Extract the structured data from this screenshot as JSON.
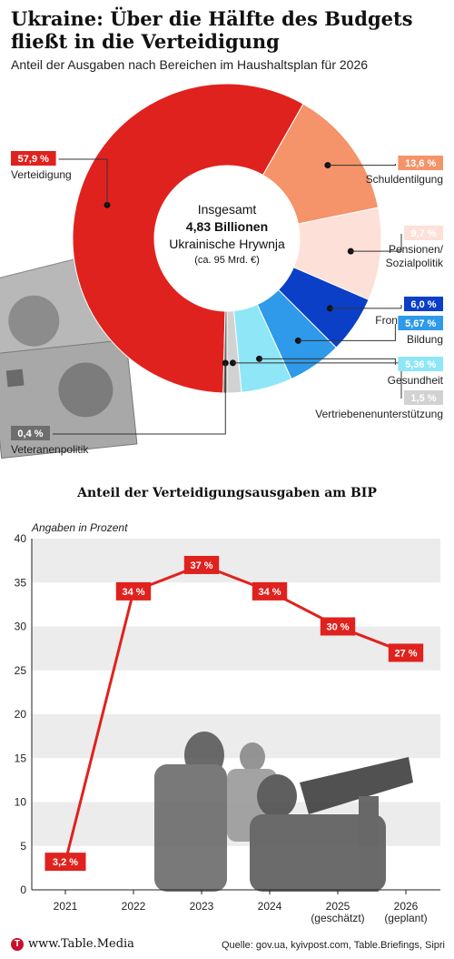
{
  "header": {
    "title": "Ukraine: Über die Hälfte des Budgets fließt in die Verteidigung",
    "subtitle": "Anteil der Ausgaben nach Bereichen im Haushaltsplan für 2026"
  },
  "chart_data": [
    {
      "type": "pie",
      "center": {
        "line1": "Insgesamt",
        "line2": "4,83 Billionen",
        "line3": "Ukrainische Hrywnja",
        "line4": "(ca. 95 Mrd. €)"
      },
      "slices": [
        {
          "name": "Verteidigung",
          "value": 57.9,
          "label": "57,9 %",
          "color": "#e0221e",
          "side": "left"
        },
        {
          "name": "Schuldentilgung",
          "value": 13.6,
          "label": "13,6 %",
          "color": "#f5936a",
          "side": "right"
        },
        {
          "name": "Pensionen/ Sozialpolitik",
          "value": 9.7,
          "label": "9,7 %",
          "color": "#fde0d8",
          "side": "right"
        },
        {
          "name": "Frontregionen",
          "value": 6.0,
          "label": "6,0 %",
          "color": "#0b3fc7",
          "side": "right"
        },
        {
          "name": "Bildung",
          "value": 5.67,
          "label": "5,67 %",
          "color": "#2f9aea",
          "side": "right"
        },
        {
          "name": "Gesundheit",
          "value": 5.36,
          "label": "5,36 %",
          "color": "#8ee6f7",
          "side": "right"
        },
        {
          "name": "Vertriebenenunterstützung",
          "value": 1.5,
          "label": "1,5 %",
          "color": "#d2d2d2",
          "side": "right"
        },
        {
          "name": "Veteranenpolitik",
          "value": 0.4,
          "label": "0,4 %",
          "color": "#6e6e6e",
          "side": "left"
        }
      ]
    },
    {
      "type": "line",
      "title": "Anteil der Verteidigungsausgaben am BIP",
      "ylabel": "Angaben in Prozent",
      "ylim": [
        0,
        40
      ],
      "yticks": [
        0,
        5,
        10,
        15,
        20,
        25,
        30,
        35,
        40
      ],
      "grid": "alternating horizontal bands",
      "color": "#e0221e",
      "x": [
        "2021",
        "2022",
        "2023",
        "2024",
        "2025 (geschätzt)",
        "2026 (geplant)"
      ],
      "x_lines": [
        [
          "2021"
        ],
        [
          "2022"
        ],
        [
          "2023"
        ],
        [
          "2024"
        ],
        [
          "2025",
          "(geschätzt)"
        ],
        [
          "2026",
          "(geplant)"
        ]
      ],
      "values": [
        3.2,
        34,
        37,
        34,
        30,
        27
      ],
      "labels": [
        "3,2 %",
        "34 %",
        "37 %",
        "34 %",
        "30 %",
        "27 %"
      ]
    }
  ],
  "footer": {
    "logo_mark": "T",
    "brand": "www.Table.Media",
    "source": "Quelle: gov.ua, kyivpost.com, Table.Briefings, Sipri"
  }
}
